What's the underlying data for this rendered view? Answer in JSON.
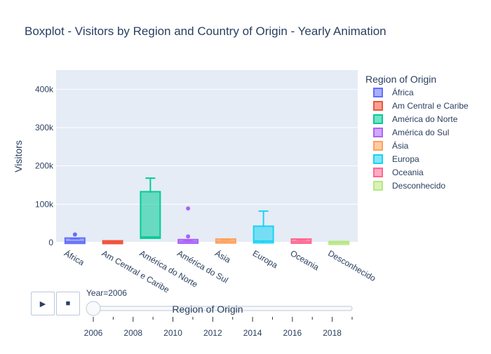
{
  "chart_data": {
    "type": "box",
    "title": "Boxplot - Visitors by Region and Country of Origin - Yearly Animation",
    "xlabel": "Region of Origin",
    "ylabel": "Visitors",
    "ylim": [
      0,
      450000
    ],
    "yticks": [
      0,
      100000,
      200000,
      300000,
      400000
    ],
    "ytick_labels": [
      "0",
      "100k",
      "200k",
      "300k",
      "400k"
    ],
    "grid": true,
    "legend_title": "Region of Origin",
    "legend_position": "right",
    "categories": [
      "África",
      "Am Central e Caribe",
      "América do Norte",
      "América do Sul",
      "Ásia",
      "Europa",
      "Oceania",
      "Desconhecido"
    ],
    "series": [
      {
        "name": "África",
        "color": "#636efa",
        "min": 0,
        "q1": 500,
        "median": 2000,
        "q3": 9000,
        "max": 10000,
        "outliers": [
          21000
        ]
      },
      {
        "name": "Am Central e Caribe",
        "color": "#ef553b",
        "min": 0,
        "q1": 300,
        "median": 800,
        "q3": 1800,
        "max": 2500,
        "outliers": []
      },
      {
        "name": "América do Norte",
        "color": "#00cc96",
        "min": 13000,
        "q1": 14000,
        "median": 14500,
        "q3": 130000,
        "max": 168000,
        "outliers": []
      },
      {
        "name": "América do Sul",
        "color": "#ab63fa",
        "min": 0,
        "q1": 1000,
        "median": 2500,
        "q3": 5000,
        "max": 6000,
        "outliers": [
          16000,
          89000
        ]
      },
      {
        "name": "Ásia",
        "color": "#ffa15a",
        "min": 0,
        "q1": 1500,
        "median": 3000,
        "q3": 6500,
        "max": 7500,
        "outliers": []
      },
      {
        "name": "Europa",
        "color": "#19d3f3",
        "min": 0,
        "q1": 2000,
        "median": 4000,
        "q3": 40000,
        "max": 82000,
        "outliers": []
      },
      {
        "name": "Oceania",
        "color": "#ff6692",
        "min": 0,
        "q1": 1000,
        "median": 2500,
        "q3": 6500,
        "max": 7000,
        "outliers": []
      },
      {
        "name": "Desconhecido",
        "color": "#b6e880",
        "min": 0,
        "q1": 0,
        "median": 0,
        "q3": 0,
        "max": 0,
        "outliers": []
      }
    ]
  },
  "animation": {
    "current_label": "Year=2006",
    "current_year": 2006,
    "year_range": [
      2005,
      2019
    ],
    "tick_labels": [
      "2006",
      "2008",
      "2010",
      "2012",
      "2014",
      "2016",
      "2018"
    ],
    "play_icon": "play-icon",
    "pause_icon": "stop-icon"
  }
}
